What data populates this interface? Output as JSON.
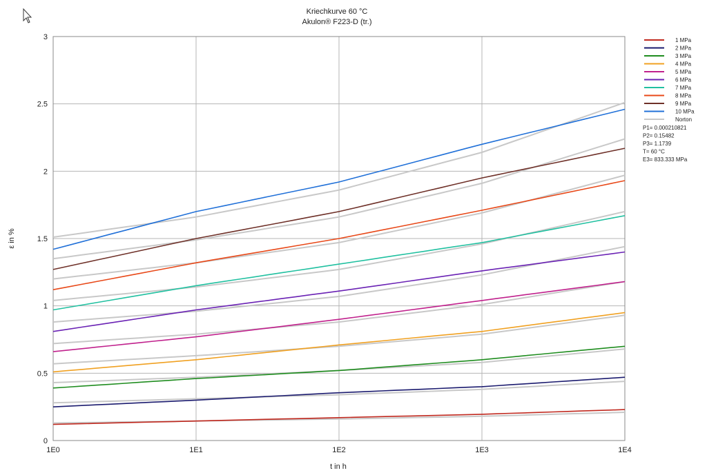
{
  "icons": {
    "cursor": "mouse-pointer-icon"
  },
  "chart_data": {
    "type": "line",
    "title": "Kriechkurve 60 °C",
    "subtitle": "Akulon® F223-D (tr.)",
    "xlabel": "t in h",
    "ylabel": "ε in %",
    "xscale": "log",
    "xlim": [
      1,
      10000
    ],
    "ylim": [
      0,
      3
    ],
    "x_ticks": [
      1,
      10,
      100,
      1000,
      10000
    ],
    "x_tick_labels": [
      "1E0",
      "1E1",
      "1E2",
      "1E3",
      "1E4"
    ],
    "y_ticks": [
      0,
      0.5,
      1,
      1.5,
      2,
      2.5,
      3
    ],
    "y_tick_labels": [
      "0",
      "0.5",
      "1",
      "1.5",
      "2",
      "2.5",
      "3"
    ],
    "grid": true,
    "legend_position": "right",
    "x": [
      1,
      10,
      100,
      1000,
      10000
    ],
    "series": [
      {
        "name": "1 MPa",
        "color": "#c0281e",
        "values": [
          0.12,
          0.145,
          0.17,
          0.195,
          0.23
        ]
      },
      {
        "name": "2 MPa",
        "color": "#1a1a6e",
        "values": [
          0.25,
          0.3,
          0.355,
          0.4,
          0.47
        ]
      },
      {
        "name": "3 MPa",
        "color": "#1e8c1e",
        "values": [
          0.39,
          0.46,
          0.52,
          0.6,
          0.7
        ]
      },
      {
        "name": "4 MPa",
        "color": "#f0a020",
        "values": [
          0.51,
          0.6,
          0.71,
          0.81,
          0.95
        ]
      },
      {
        "name": "5 MPa",
        "color": "#c0208c",
        "values": [
          0.66,
          0.77,
          0.9,
          1.04,
          1.18
        ]
      },
      {
        "name": "6 MPa",
        "color": "#6a22b4",
        "values": [
          0.81,
          0.97,
          1.11,
          1.26,
          1.4
        ]
      },
      {
        "name": "7 MPa",
        "color": "#20c0a0",
        "values": [
          0.97,
          1.15,
          1.31,
          1.47,
          1.67
        ]
      },
      {
        "name": "8 MPa",
        "color": "#e84818",
        "values": [
          1.12,
          1.32,
          1.5,
          1.71,
          1.93
        ]
      },
      {
        "name": "9 MPa",
        "color": "#6e3028",
        "values": [
          1.27,
          1.5,
          1.7,
          1.95,
          2.17
        ]
      },
      {
        "name": "10 MPa",
        "color": "#2070d8",
        "values": [
          1.42,
          1.7,
          1.92,
          2.2,
          2.46
        ]
      }
    ],
    "norton": {
      "name": "Norton",
      "color": "#c8c8c8",
      "curves": [
        [
          0.13,
          0.145,
          0.16,
          0.18,
          0.21
        ],
        [
          0.28,
          0.31,
          0.34,
          0.38,
          0.44
        ],
        [
          0.43,
          0.47,
          0.52,
          0.58,
          0.68
        ],
        [
          0.57,
          0.63,
          0.7,
          0.79,
          0.93
        ],
        [
          0.72,
          0.79,
          0.88,
          1.01,
          1.18
        ],
        [
          0.88,
          0.96,
          1.07,
          1.23,
          1.44
        ],
        [
          1.04,
          1.14,
          1.27,
          1.46,
          1.7
        ],
        [
          1.2,
          1.32,
          1.47,
          1.69,
          1.97
        ],
        [
          1.35,
          1.49,
          1.66,
          1.91,
          2.24
        ],
        [
          1.51,
          1.66,
          1.86,
          2.14,
          2.51
        ]
      ]
    },
    "parameters": [
      "P1= 0.000210821",
      "P2= 0.15482",
      "P3= 1.1739",
      "T= 60 °C",
      "E3= 833.333 MPa"
    ]
  }
}
